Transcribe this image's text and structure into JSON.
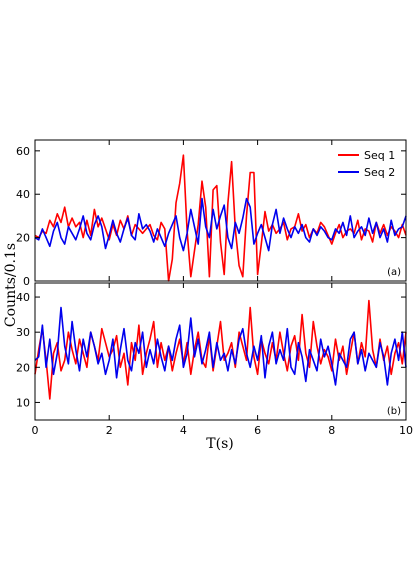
{
  "chart_data": {
    "type": "line",
    "shared_axes": {
      "xlabel": "T(s)",
      "ylabel": "Counts/0.1s",
      "xlim": [
        0,
        10
      ],
      "xticks": [
        "0",
        "2",
        "4",
        "6",
        "8",
        "10"
      ],
      "grid": false
    },
    "colors": {
      "seq1": "#ff0000",
      "seq2": "#0000ee"
    },
    "panels": [
      {
        "label": "(a)",
        "ylim": [
          0,
          65
        ],
        "yticks": [
          "0",
          "20",
          "40",
          "60"
        ],
        "legend": {
          "placement": "top-right",
          "entries": [
            "Seq 1",
            "Seq 2"
          ]
        },
        "series": [
          {
            "name": "Seq 1",
            "x": [
              0.0,
              0.1,
              0.2,
              0.3,
              0.4,
              0.5,
              0.6,
              0.7,
              0.8,
              0.9,
              1.0,
              1.1,
              1.2,
              1.3,
              1.4,
              1.5,
              1.6,
              1.7,
              1.8,
              1.9,
              2.0,
              2.1,
              2.2,
              2.3,
              2.4,
              2.5,
              2.6,
              2.7,
              2.8,
              2.9,
              3.0,
              3.1,
              3.2,
              3.3,
              3.4,
              3.5,
              3.6,
              3.7,
              3.8,
              3.9,
              4.0,
              4.1,
              4.2,
              4.3,
              4.4,
              4.5,
              4.6,
              4.7,
              4.8,
              4.9,
              5.0,
              5.1,
              5.2,
              5.3,
              5.4,
              5.5,
              5.6,
              5.7,
              5.8,
              5.9,
              6.0,
              6.1,
              6.2,
              6.3,
              6.4,
              6.5,
              6.6,
              6.7,
              6.8,
              6.9,
              7.0,
              7.1,
              7.2,
              7.3,
              7.4,
              7.5,
              7.6,
              7.7,
              7.8,
              7.9,
              8.0,
              8.1,
              8.2,
              8.3,
              8.4,
              8.5,
              8.6,
              8.7,
              8.8,
              8.9,
              9.0,
              9.1,
              9.2,
              9.3,
              9.4,
              9.5,
              9.6,
              9.7,
              9.8,
              9.9,
              10.0
            ],
            "y": [
              21,
              20,
              23,
              22,
              28,
              25,
              31,
              27,
              34,
              25,
              29,
              25,
              27,
              20,
              28,
              21,
              33,
              25,
              29,
              24,
              19,
              26,
              21,
              28,
              24,
              30,
              21,
              26,
              24,
              22,
              24,
              26,
              21,
              19,
              27,
              24,
              0,
              10,
              36,
              45,
              58,
              23,
              2,
              14,
              26,
              46,
              34,
              2,
              42,
              44,
              18,
              3,
              36,
              55,
              24,
              7,
              2,
              30,
              50,
              50,
              3,
              17,
              32,
              23,
              26,
              22,
              24,
              27,
              19,
              24,
              25,
              31,
              23,
              26,
              20,
              24,
              22,
              27,
              25,
              21,
              17,
              22,
              26,
              20,
              23,
              24,
              22,
              28,
              19,
              24,
              23,
              18,
              27,
              22,
              26,
              21,
              25,
              23,
              20,
              26,
              21
            ]
          },
          {
            "name": "Seq 2",
            "x": [
              0.0,
              0.1,
              0.2,
              0.3,
              0.4,
              0.5,
              0.6,
              0.7,
              0.8,
              0.9,
              1.0,
              1.1,
              1.2,
              1.3,
              1.4,
              1.5,
              1.6,
              1.7,
              1.8,
              1.9,
              2.0,
              2.1,
              2.2,
              2.3,
              2.4,
              2.5,
              2.6,
              2.7,
              2.8,
              2.9,
              3.0,
              3.1,
              3.2,
              3.3,
              3.4,
              3.5,
              3.6,
              3.7,
              3.8,
              3.9,
              4.0,
              4.1,
              4.2,
              4.3,
              4.4,
              4.5,
              4.6,
              4.7,
              4.8,
              4.9,
              5.0,
              5.1,
              5.2,
              5.3,
              5.4,
              5.5,
              5.6,
              5.7,
              5.8,
              5.9,
              6.0,
              6.1,
              6.2,
              6.3,
              6.4,
              6.5,
              6.6,
              6.7,
              6.8,
              6.9,
              7.0,
              7.1,
              7.2,
              7.3,
              7.4,
              7.5,
              7.6,
              7.7,
              7.8,
              7.9,
              8.0,
              8.1,
              8.2,
              8.3,
              8.4,
              8.5,
              8.6,
              8.7,
              8.8,
              8.9,
              9.0,
              9.1,
              9.2,
              9.3,
              9.4,
              9.5,
              9.6,
              9.7,
              9.8,
              9.9,
              10.0
            ],
            "y": [
              20,
              19,
              24,
              20,
              16,
              23,
              27,
              20,
              17,
              25,
              22,
              19,
              24,
              30,
              22,
              19,
              26,
              30,
              25,
              15,
              21,
              28,
              22,
              18,
              24,
              29,
              21,
              19,
              31,
              24,
              26,
              23,
              18,
              24,
              20,
              16,
              22,
              26,
              30,
              20,
              14,
              22,
              33,
              25,
              17,
              38,
              25,
              20,
              33,
              24,
              30,
              35,
              20,
              15,
              27,
              22,
              29,
              38,
              34,
              17,
              22,
              26,
              20,
              14,
              26,
              33,
              22,
              29,
              24,
              20,
              25,
              22,
              26,
              20,
              18,
              24,
              21,
              25,
              23,
              20,
              19,
              24,
              22,
              27,
              21,
              30,
              20,
              23,
              25,
              21,
              29,
              22,
              27,
              20,
              24,
              18,
              28,
              21,
              24,
              25,
              30
            ]
          }
        ]
      },
      {
        "label": "(b)",
        "ylim": [
          5,
          44
        ],
        "yticks": [
          "10",
          "20",
          "30",
          "40"
        ],
        "series": [
          {
            "name": "Seq 1",
            "x": [
              0.0,
              0.1,
              0.2,
              0.3,
              0.4,
              0.5,
              0.6,
              0.7,
              0.8,
              0.9,
              1.0,
              1.1,
              1.2,
              1.3,
              1.4,
              1.5,
              1.6,
              1.7,
              1.8,
              1.9,
              2.0,
              2.1,
              2.2,
              2.3,
              2.4,
              2.5,
              2.6,
              2.7,
              2.8,
              2.9,
              3.0,
              3.1,
              3.2,
              3.3,
              3.4,
              3.5,
              3.6,
              3.7,
              3.8,
              3.9,
              4.0,
              4.1,
              4.2,
              4.3,
              4.4,
              4.5,
              4.6,
              4.7,
              4.8,
              4.9,
              5.0,
              5.1,
              5.2,
              5.3,
              5.4,
              5.5,
              5.6,
              5.7,
              5.8,
              5.9,
              6.0,
              6.1,
              6.2,
              6.3,
              6.4,
              6.5,
              6.6,
              6.7,
              6.8,
              6.9,
              7.0,
              7.1,
              7.2,
              7.3,
              7.4,
              7.5,
              7.6,
              7.7,
              7.8,
              7.9,
              8.0,
              8.1,
              8.2,
              8.3,
              8.4,
              8.5,
              8.6,
              8.7,
              8.8,
              8.9,
              9.0,
              9.1,
              9.2,
              9.3,
              9.4,
              9.5,
              9.6,
              9.7,
              9.8,
              9.9,
              10.0
            ],
            "y": [
              18,
              25,
              31,
              22,
              11,
              24,
              27,
              19,
              22,
              30,
              25,
              21,
              28,
              24,
              20,
              30,
              26,
              22,
              31,
              27,
              23,
              25,
              29,
              20,
              24,
              15,
              27,
              22,
              32,
              18,
              24,
              28,
              33,
              20,
              27,
              22,
              26,
              19,
              24,
              28,
              21,
              27,
              18,
              25,
              30,
              22,
              20,
              29,
              19,
              26,
              33,
              22,
              24,
              27,
              20,
              30,
              26,
              22,
              37,
              23,
              18,
              28,
              24,
              21,
              27,
              22,
              30,
              24,
              19,
              26,
              29,
              22,
              35,
              24,
              20,
              33,
              26,
              21,
              25,
              23,
              19,
              28,
              22,
              26,
              18,
              24,
              30,
              21,
              27,
              23,
              39,
              25,
              20,
              28,
              22,
              26,
              18,
              24,
              27,
              21,
              30
            ]
          },
          {
            "name": "Seq 2",
            "x": [
              0.0,
              0.1,
              0.2,
              0.3,
              0.4,
              0.5,
              0.6,
              0.7,
              0.8,
              0.9,
              1.0,
              1.1,
              1.2,
              1.3,
              1.4,
              1.5,
              1.6,
              1.7,
              1.8,
              1.9,
              2.0,
              2.1,
              2.2,
              2.3,
              2.4,
              2.5,
              2.6,
              2.7,
              2.8,
              2.9,
              3.0,
              3.1,
              3.2,
              3.3,
              3.4,
              3.5,
              3.6,
              3.7,
              3.8,
              3.9,
              4.0,
              4.1,
              4.2,
              4.3,
              4.4,
              4.5,
              4.6,
              4.7,
              4.8,
              4.9,
              5.0,
              5.1,
              5.2,
              5.3,
              5.4,
              5.5,
              5.6,
              5.7,
              5.8,
              5.9,
              6.0,
              6.1,
              6.2,
              6.3,
              6.4,
              6.5,
              6.6,
              6.7,
              6.8,
              6.9,
              7.0,
              7.1,
              7.2,
              7.3,
              7.4,
              7.5,
              7.6,
              7.7,
              7.8,
              7.9,
              8.0,
              8.1,
              8.2,
              8.3,
              8.4,
              8.5,
              8.6,
              8.7,
              8.8,
              8.9,
              9.0,
              9.1,
              9.2,
              9.3,
              9.4,
              9.5,
              9.6,
              9.7,
              9.8,
              9.9,
              10.0
            ],
            "y": [
              22,
              23,
              32,
              20,
              28,
              18,
              24,
              37,
              26,
              21,
              33,
              25,
              19,
              28,
              23,
              30,
              26,
              21,
              24,
              18,
              22,
              28,
              17,
              25,
              31,
              22,
              19,
              27,
              24,
              30,
              20,
              25,
              21,
              28,
              23,
              19,
              26,
              22,
              28,
              32,
              20,
              24,
              34,
              23,
              28,
              21,
              25,
              30,
              20,
              27,
              22,
              24,
              19,
              25,
              21,
              28,
              31,
              24,
              20,
              26,
              22,
              29,
              17,
              26,
              30,
              21,
              25,
              22,
              31,
              20,
              18,
              27,
              23,
              16,
              25,
              22,
              19,
              28,
              23,
              26,
              21,
              15,
              24,
              22,
              20,
              28,
              30,
              21,
              25,
              19,
              24,
              22,
              20,
              27,
              23,
              15,
              24,
              28,
              22,
              30,
              20
            ]
          }
        ]
      }
    ]
  }
}
